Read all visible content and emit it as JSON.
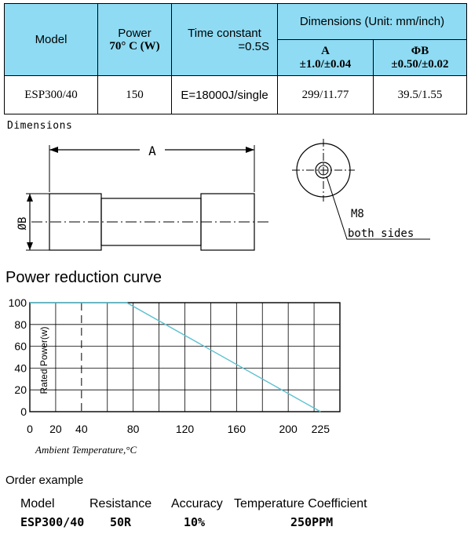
{
  "table": {
    "model_header": "Model",
    "power_header_line1": "Power",
    "power_header_line2": "70° C (W)",
    "time_header_line1": "Time constant",
    "time_header_line2": "=0.5S",
    "dimensions_header": "Dimensions (Unit: mm/inch)",
    "a_header_label": "A",
    "a_header_tol": "±1.0/±0.04",
    "b_header_label": "ΦB",
    "b_header_tol": "±0.50/±0.02",
    "row": {
      "model": "ESP300/40",
      "power": "150",
      "time_constant": "E=18000J/single",
      "a": "299/11.77",
      "b": "39.5/1.55"
    },
    "colors": {
      "header_bg": "#8EDBF3",
      "border": "#000000"
    }
  },
  "dimensions": {
    "title": "Dimensions",
    "a_label": "A",
    "b_label": "ØB",
    "thread_label": "M8",
    "sides_label": "both sides"
  },
  "curve": {
    "title": "Power reduction curve",
    "ylabel": "Rated Power(w)",
    "xlabel": "Ambient Temperature,°C",
    "line_color": "#5BC0D0"
  },
  "chart_data": {
    "type": "line",
    "title": "Power reduction curve",
    "xlabel": "Ambient Temperature,°C",
    "ylabel": "Rated Power(w)",
    "x_ticks": [
      0,
      20,
      40,
      80,
      120,
      160,
      200,
      225
    ],
    "y_ticks": [
      0,
      20,
      40,
      60,
      80,
      100
    ],
    "xlim": [
      0,
      240
    ],
    "ylim": [
      0,
      100
    ],
    "grid": true,
    "reference_line_x": 40,
    "series": [
      {
        "x": [
          0,
          75,
          225
        ],
        "y": [
          100,
          100,
          0
        ]
      }
    ]
  },
  "order": {
    "heading": "Order example",
    "labels": [
      "Model",
      "Resistance",
      "Accuracy",
      "Temperature Coefficient"
    ],
    "values": [
      "ESP300/40",
      "50R",
      "10%",
      "250PPM"
    ]
  }
}
